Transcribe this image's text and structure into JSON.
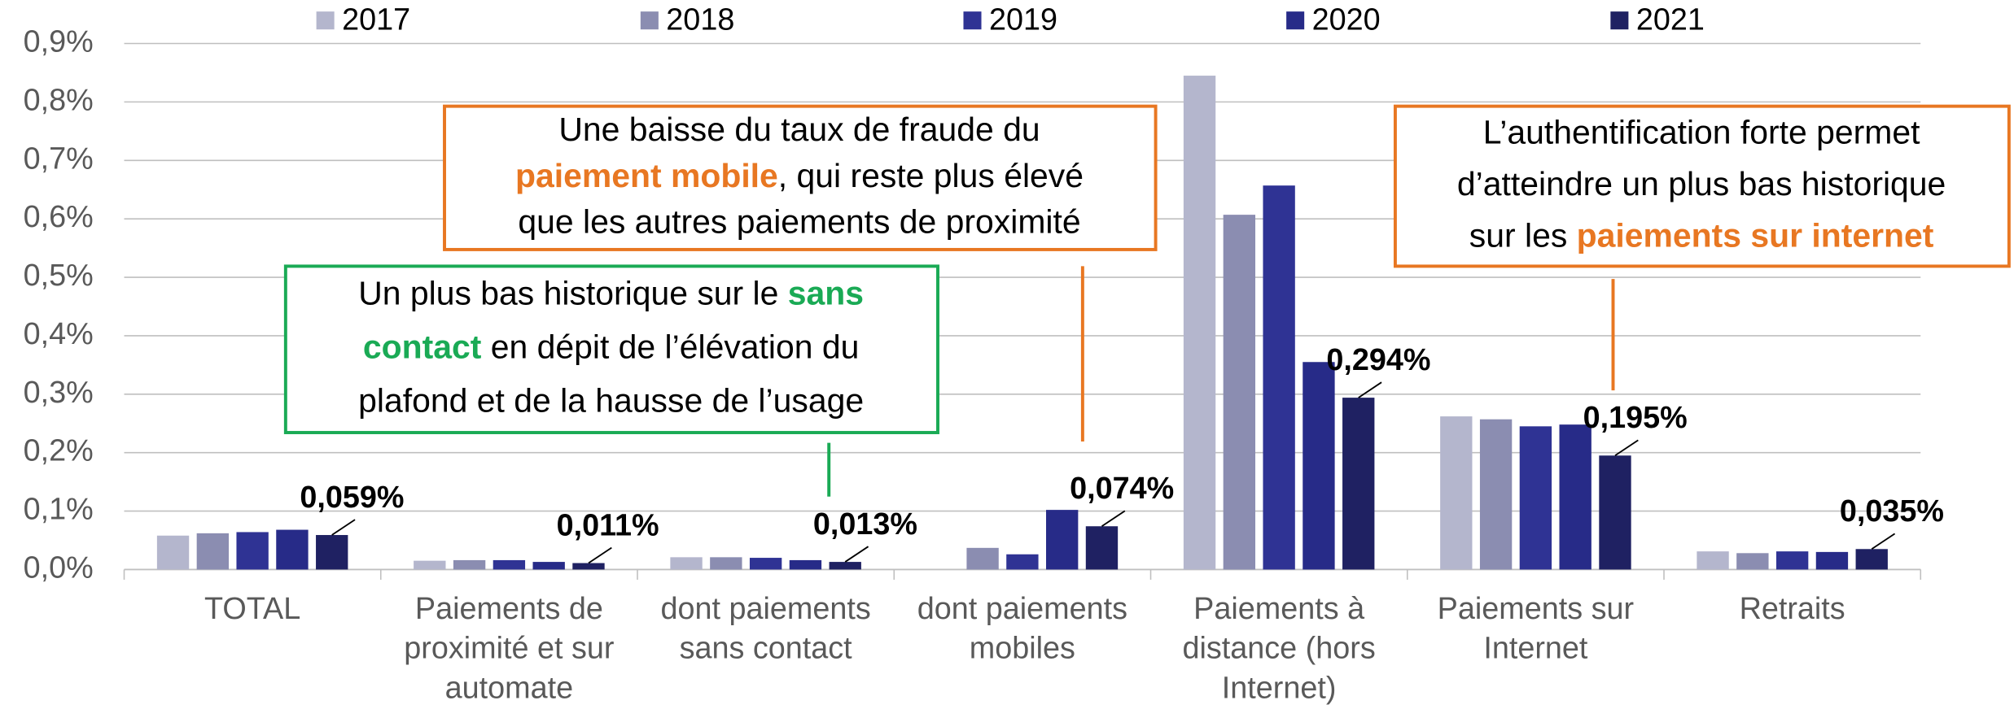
{
  "chart_data": {
    "type": "bar",
    "categories": [
      [
        "TOTAL"
      ],
      [
        "Paiements de",
        "proximité et sur",
        "automate"
      ],
      [
        "dont paiements",
        "sans contact"
      ],
      [
        "dont paiements",
        "mobiles"
      ],
      [
        "Paiements à",
        "distance (hors",
        "Internet)"
      ],
      [
        "Paiements sur",
        "Internet"
      ],
      [
        "Retraits"
      ]
    ],
    "series": [
      {
        "name": "2017",
        "color": "#b4b6cd",
        "values": [
          0.058,
          0.015,
          0.021,
          null,
          0.845,
          0.262,
          0.031
        ]
      },
      {
        "name": "2018",
        "color": "#8b8db1",
        "values": [
          0.062,
          0.016,
          0.021,
          0.037,
          0.607,
          0.257,
          0.028
        ]
      },
      {
        "name": "2019",
        "color": "#2f3394",
        "values": [
          0.064,
          0.016,
          0.02,
          0.026,
          0.657,
          0.245,
          0.031
        ]
      },
      {
        "name": "2020",
        "color": "#272b88",
        "values": [
          0.068,
          0.013,
          0.016,
          0.102,
          0.355,
          0.248,
          0.03
        ]
      },
      {
        "name": "2021",
        "color": "#1f2162",
        "values": [
          0.059,
          0.011,
          0.013,
          0.074,
          0.294,
          0.195,
          0.035
        ],
        "value_labels": [
          "0,059%",
          "0,011%",
          "0,013%",
          "0,074%",
          "0,294%",
          "0,195%",
          "0,035%"
        ]
      }
    ],
    "ylim": [
      0,
      0.9
    ],
    "yticks": [
      {
        "value": 0,
        "label": "0,0%"
      },
      {
        "value": 0.1,
        "label": "0,1%"
      },
      {
        "value": 0.2,
        "label": "0,2%"
      },
      {
        "value": 0.3,
        "label": "0,3%"
      },
      {
        "value": 0.4,
        "label": "0,4%"
      },
      {
        "value": 0.5,
        "label": "0,5%"
      },
      {
        "value": 0.6,
        "label": "0,6%"
      },
      {
        "value": 0.7,
        "label": "0,7%"
      },
      {
        "value": 0.8,
        "label": "0,8%"
      },
      {
        "value": 0.9,
        "label": "0,9%"
      }
    ],
    "grid": true,
    "legend": "top",
    "annotations": [
      {
        "border": "#e87722",
        "lines": [
          [
            {
              "text": "Une baisse du taux de fraude du"
            }
          ],
          [
            {
              "text": "paiement mobile",
              "color": "#e87722"
            },
            {
              "text": ", qui reste plus élevé"
            }
          ],
          [
            {
              "text": "que les autres paiements de proximité"
            }
          ]
        ]
      },
      {
        "border": "#1aaa55",
        "lines": [
          [
            {
              "text": "Un plus bas historique sur le "
            },
            {
              "text": "sans",
              "color": "#1aaa55"
            }
          ],
          [
            {
              "text": "contact",
              "color": "#1aaa55"
            },
            {
              "text": " en dépit de l’élévation du"
            }
          ],
          [
            {
              "text": "plafond et de la hausse de l’usage"
            }
          ]
        ]
      },
      {
        "border": "#e87722",
        "lines": [
          [
            {
              "text": "L’authentification forte permet"
            }
          ],
          [
            {
              "text": "d’atteindre un plus bas historique"
            }
          ],
          [
            {
              "text": "sur les "
            },
            {
              "text": "paiements sur internet",
              "color": "#e87722"
            }
          ]
        ]
      }
    ]
  }
}
